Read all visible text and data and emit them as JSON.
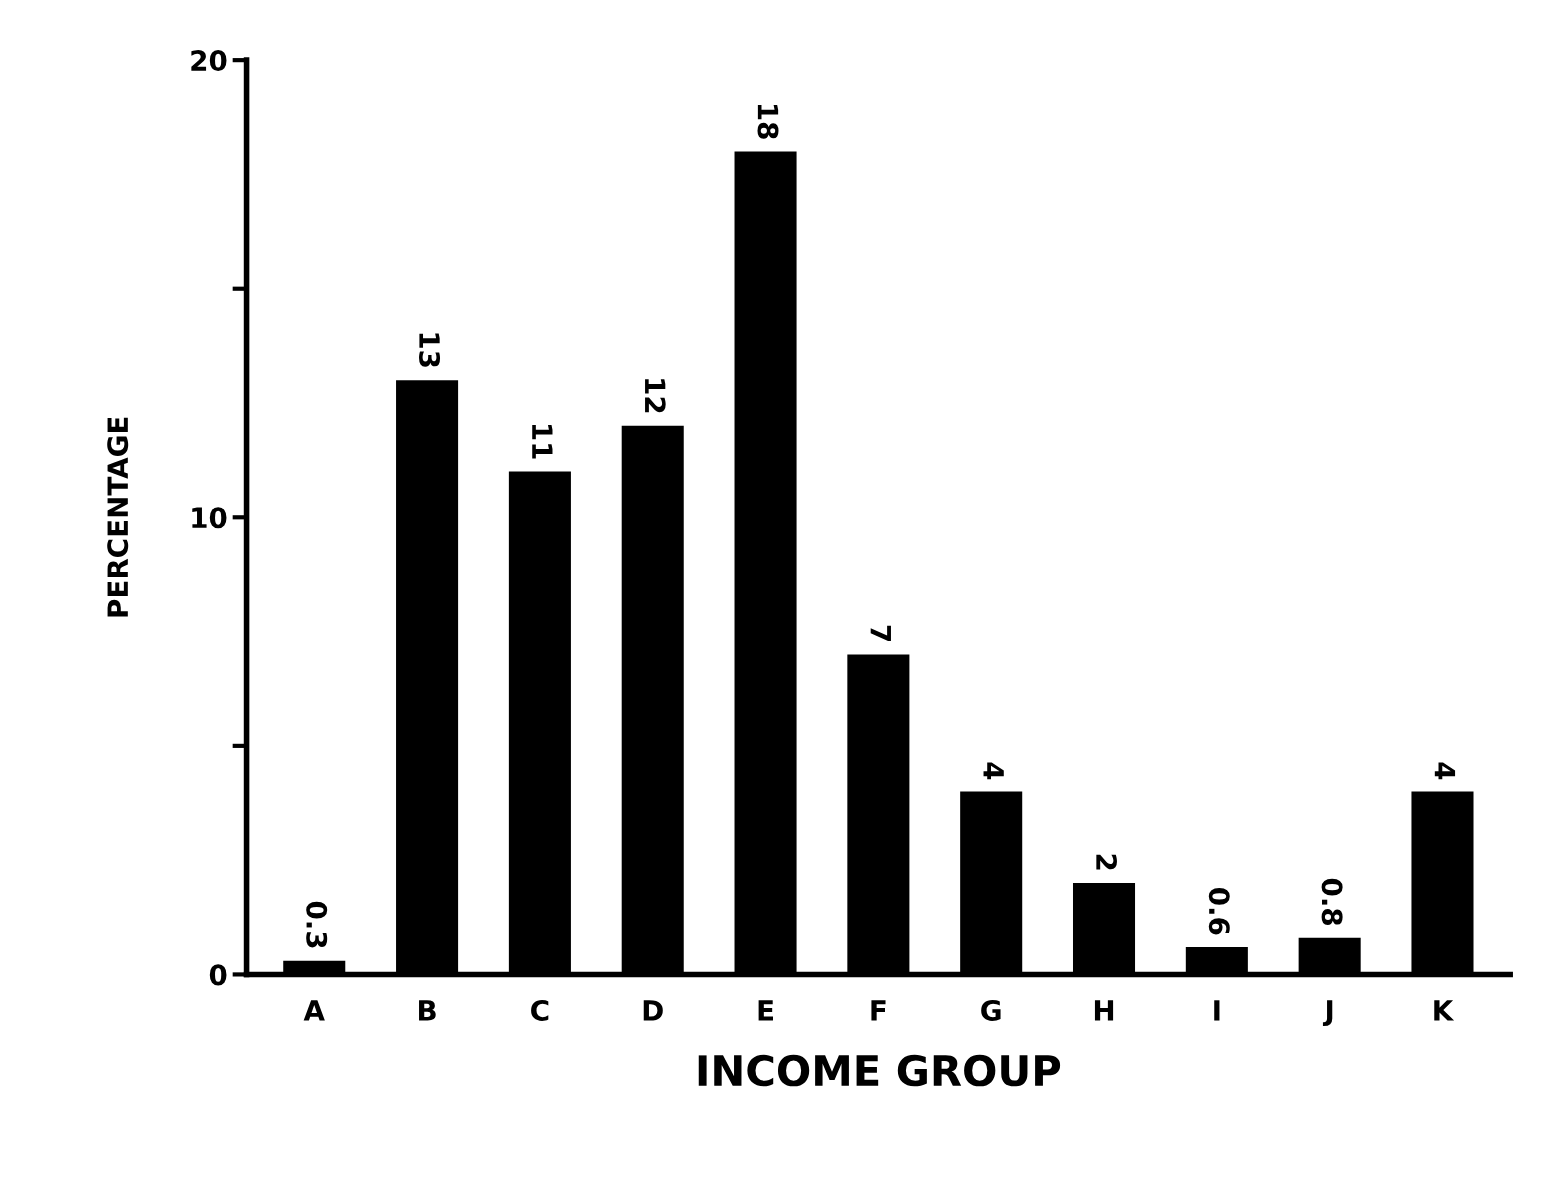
{
  "chart_data": {
    "type": "bar",
    "xlabel": "INCOME GROUP",
    "ylabel": "PERCENTAGE",
    "categories": [
      "A",
      "B",
      "C",
      "D",
      "E",
      "F",
      "G",
      "H",
      "I",
      "J",
      "K"
    ],
    "values": [
      0.3,
      13,
      11,
      12,
      18,
      7,
      4,
      2,
      0.6,
      0.8,
      4
    ],
    "color": "#000000",
    "ylim": [
      0,
      20
    ],
    "yticks": [
      0,
      {
        "value": 5,
        "label": null
      },
      10,
      {
        "value": 15,
        "label": null
      },
      20
    ],
    "data_labels": true,
    "grid": false,
    "legend": false
  }
}
